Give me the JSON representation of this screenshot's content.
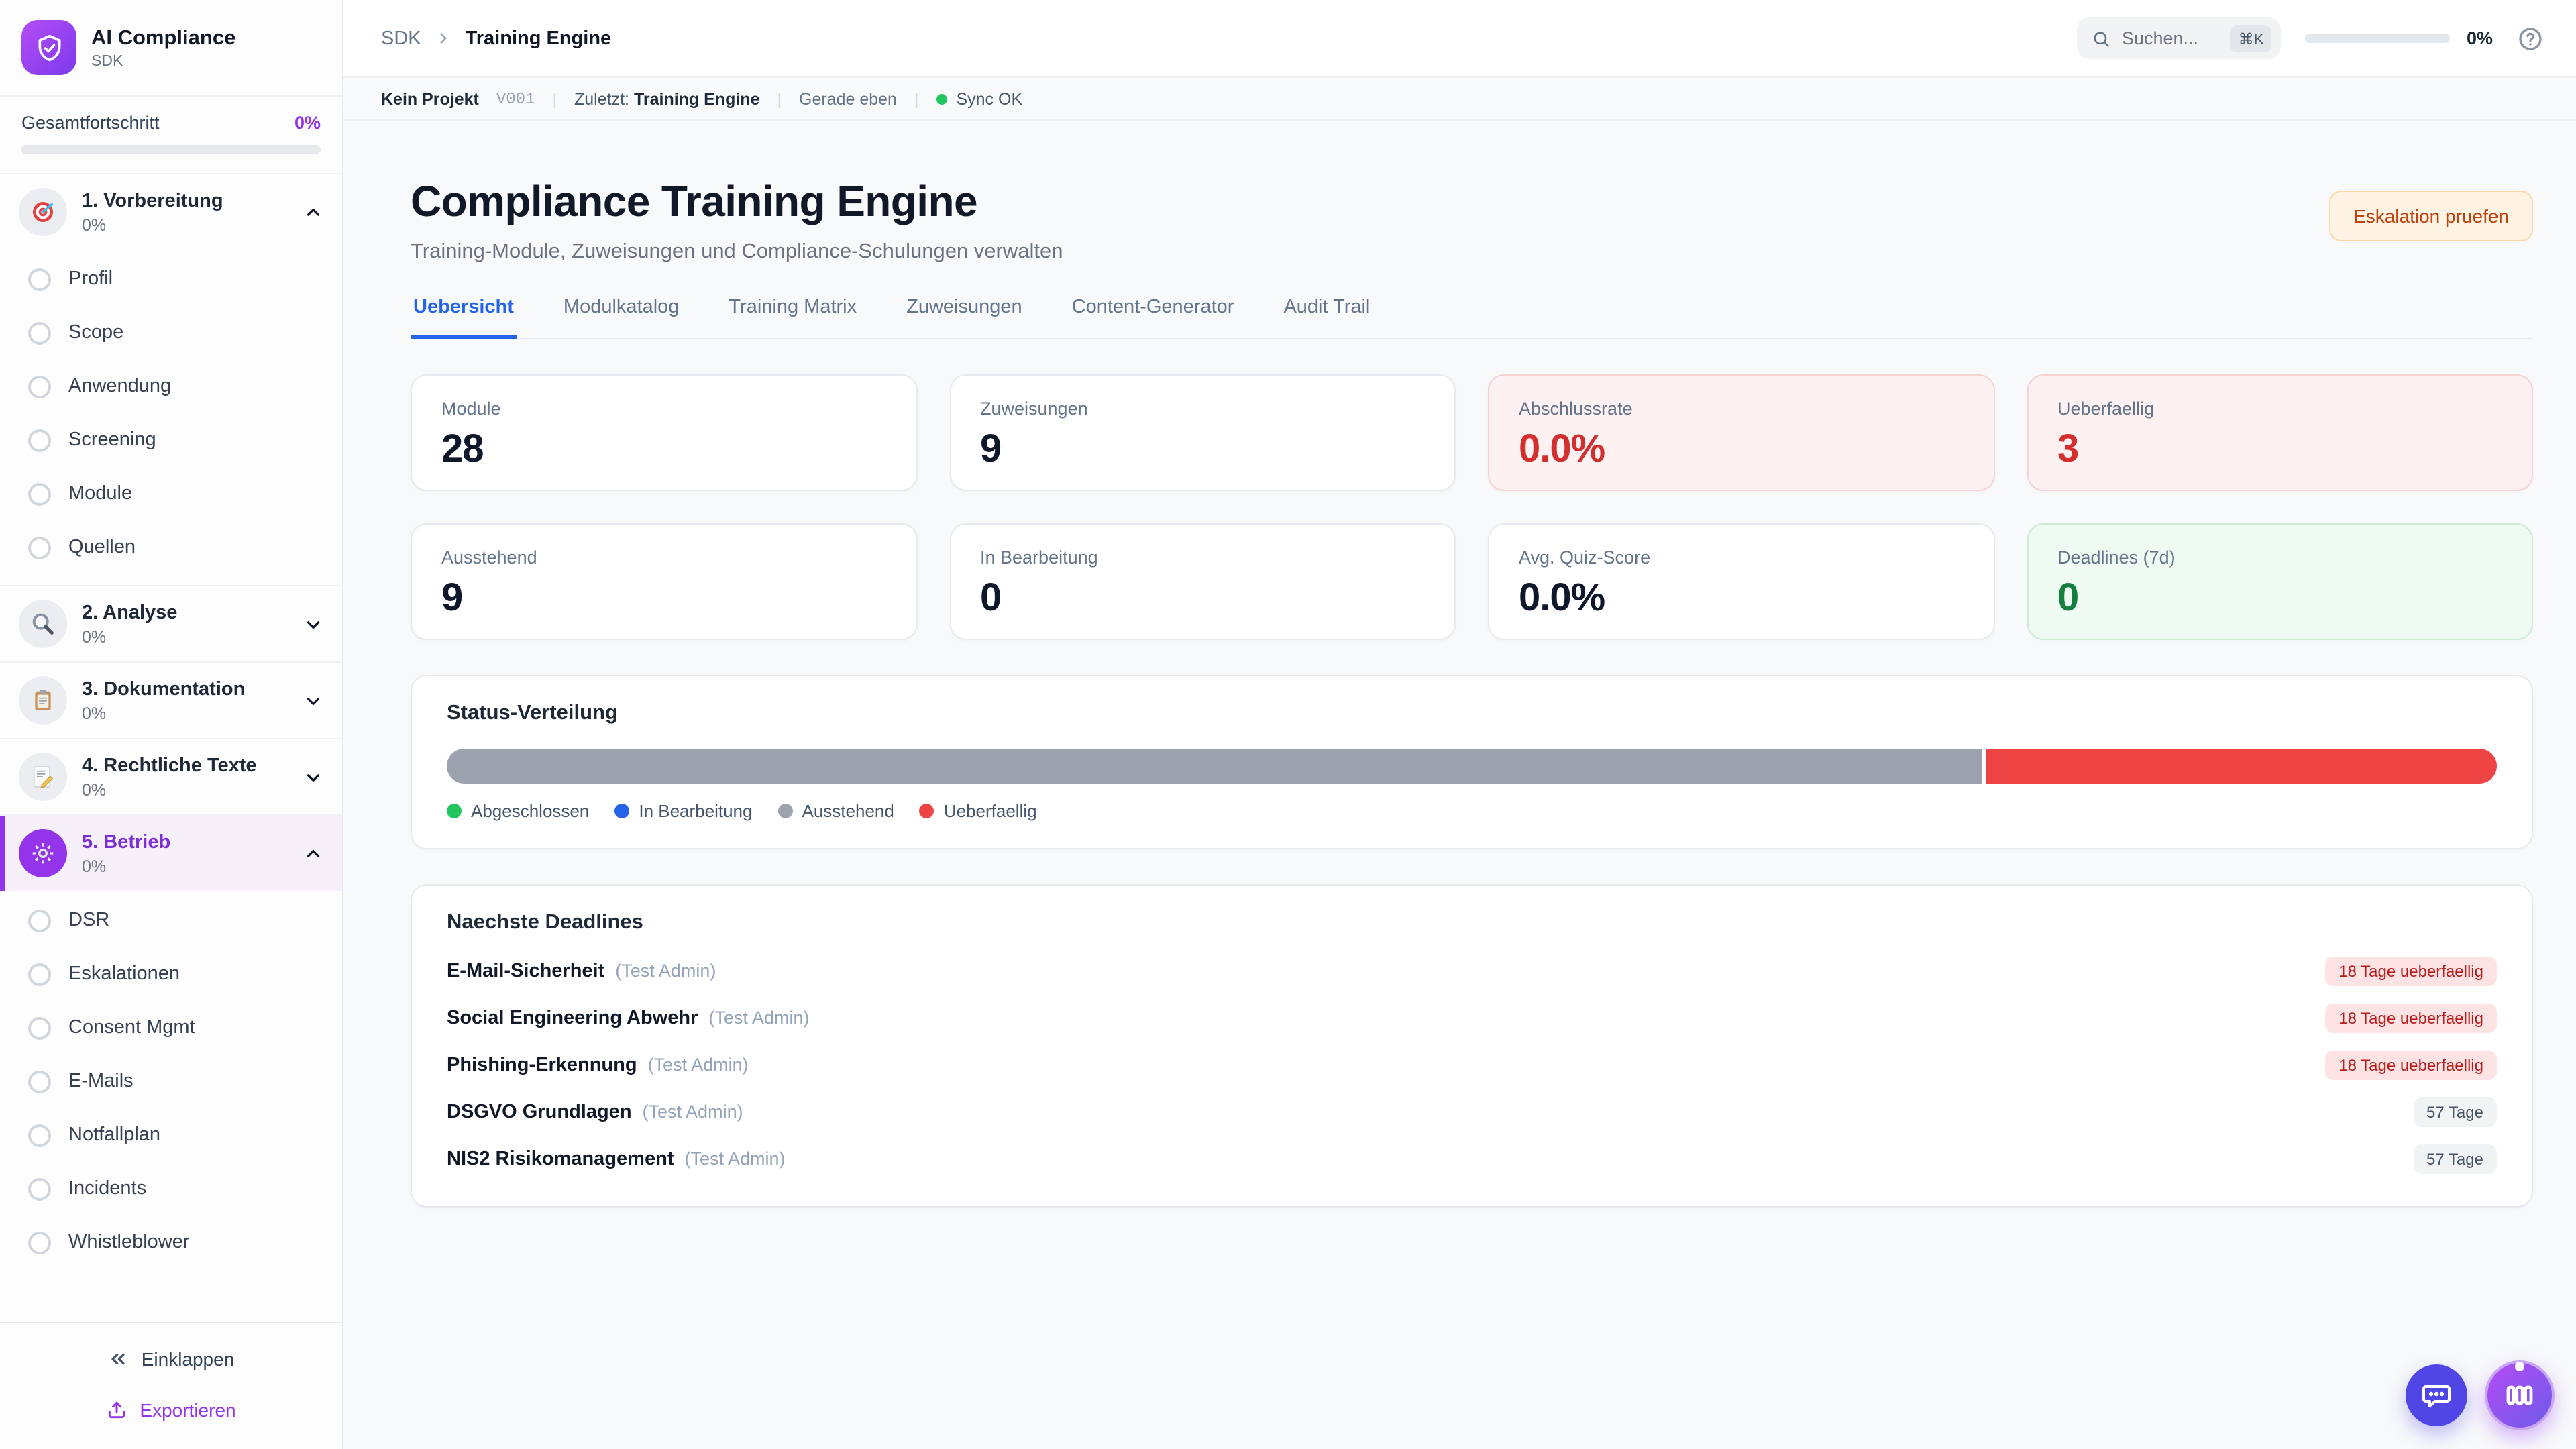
{
  "colors": {
    "accent_purple": "#9333ea",
    "active_tab_blue": "#2563eb",
    "danger_red": "#d32f2f",
    "badge_red_text": "#b91c1c",
    "badge_red_bg": "#fde3e3",
    "success_green": "#15803d",
    "sync_green": "#22c55e",
    "bar_grey": "#9ca3af",
    "bar_red": "#ef4444",
    "escalate_orange": "#c2410c"
  },
  "sidebar": {
    "logo": {
      "icon": "shield-check-icon",
      "title": "AI Compliance",
      "subtitle": "SDK"
    },
    "overall": {
      "label": "Gesamtfortschritt",
      "value": "0%",
      "progress_pct": 0
    },
    "groups": [
      {
        "icon": "target-icon",
        "label": "1. Vorbereitung",
        "progress": "0%",
        "expanded": true,
        "active": false,
        "items": [
          "Profil",
          "Scope",
          "Anwendung",
          "Screening",
          "Module",
          "Quellen"
        ]
      },
      {
        "icon": "magnifier-icon",
        "label": "2. Analyse",
        "progress": "0%",
        "expanded": false,
        "active": false,
        "items": []
      },
      {
        "icon": "clipboard-icon",
        "label": "3. Dokumentation",
        "progress": "0%",
        "expanded": false,
        "active": false,
        "items": []
      },
      {
        "icon": "memo-icon",
        "label": "4. Rechtliche Texte",
        "progress": "0%",
        "expanded": false,
        "active": false,
        "items": []
      },
      {
        "icon": "gear-icon",
        "label": "5. Betrieb",
        "progress": "0%",
        "expanded": true,
        "active": true,
        "items": [
          "DSR",
          "Eskalationen",
          "Consent Mgmt",
          "E-Mails",
          "Notfallplan",
          "Incidents",
          "Whistleblower"
        ]
      }
    ],
    "footer": {
      "collapse_label": "Einklappen",
      "export_label": "Exportieren"
    }
  },
  "topbar": {
    "breadcrumb": {
      "root": "SDK",
      "current": "Training Engine"
    },
    "search": {
      "placeholder": "Suchen...",
      "shortcut": "⌘K"
    },
    "progress": {
      "value": "0%",
      "pct": 0
    },
    "help_icon": "question-circle-icon"
  },
  "statusbar": {
    "project": "Kein Projekt",
    "version": "V001",
    "last_label": "Zuletzt:",
    "last_value": "Training Engine",
    "time": "Gerade eben",
    "sync": "Sync OK"
  },
  "hero": {
    "title": "Compliance Training Engine",
    "subtitle": "Training-Module, Zuweisungen und Compliance-Schulungen verwalten",
    "action_label": "Eskalation pruefen"
  },
  "tabs": [
    {
      "label": "Uebersicht",
      "active": true
    },
    {
      "label": "Modulkatalog",
      "active": false
    },
    {
      "label": "Training Matrix",
      "active": false
    },
    {
      "label": "Zuweisungen",
      "active": false
    },
    {
      "label": "Content-Generator",
      "active": false
    },
    {
      "label": "Audit Trail",
      "active": false
    }
  ],
  "stats": [
    {
      "label": "Module",
      "value": "28",
      "variant": "default"
    },
    {
      "label": "Zuweisungen",
      "value": "9",
      "variant": "default"
    },
    {
      "label": "Abschlussrate",
      "value": "0.0%",
      "variant": "danger"
    },
    {
      "label": "Ueberfaellig",
      "value": "3",
      "variant": "danger"
    },
    {
      "label": "Ausstehend",
      "value": "9",
      "variant": "default"
    },
    {
      "label": "In Bearbeitung",
      "value": "0",
      "variant": "default"
    },
    {
      "label": "Avg. Quiz-Score",
      "value": "0.0%",
      "variant": "default"
    },
    {
      "label": "Deadlines (7d)",
      "value": "0",
      "variant": "success"
    }
  ],
  "distribution": {
    "title": "Status-Verteilung",
    "segments": [
      {
        "name": "Ausstehend",
        "pct": 75,
        "color": "#9ca3af"
      },
      {
        "name": "Ueberfaellig",
        "pct": 25,
        "color": "#ef4444"
      }
    ],
    "legend": [
      {
        "label": "Abgeschlossen",
        "color": "#22c55e"
      },
      {
        "label": "In Bearbeitung",
        "color": "#2563eb"
      },
      {
        "label": "Ausstehend",
        "color": "#9ca3af"
      },
      {
        "label": "Ueberfaellig",
        "color": "#ef4444"
      }
    ]
  },
  "deadlines": {
    "title": "Naechste Deadlines",
    "items": [
      {
        "name": "E-Mail-Sicherheit",
        "assignee": "(Test Admin)",
        "badge": "18 Tage ueberfaellig",
        "overdue": true
      },
      {
        "name": "Social Engineering Abwehr",
        "assignee": "(Test Admin)",
        "badge": "18 Tage ueberfaellig",
        "overdue": true
      },
      {
        "name": "Phishing-Erkennung",
        "assignee": "(Test Admin)",
        "badge": "18 Tage ueberfaellig",
        "overdue": true
      },
      {
        "name": "DSGVO Grundlagen",
        "assignee": "(Test Admin)",
        "badge": "57 Tage",
        "overdue": false
      },
      {
        "name": "NIS2 Risikomanagement",
        "assignee": "(Test Admin)",
        "badge": "57 Tage",
        "overdue": false
      }
    ]
  },
  "fabs": {
    "chat_icon": "chat-bubble-icon",
    "kanban_icon": "kanban-columns-icon"
  }
}
